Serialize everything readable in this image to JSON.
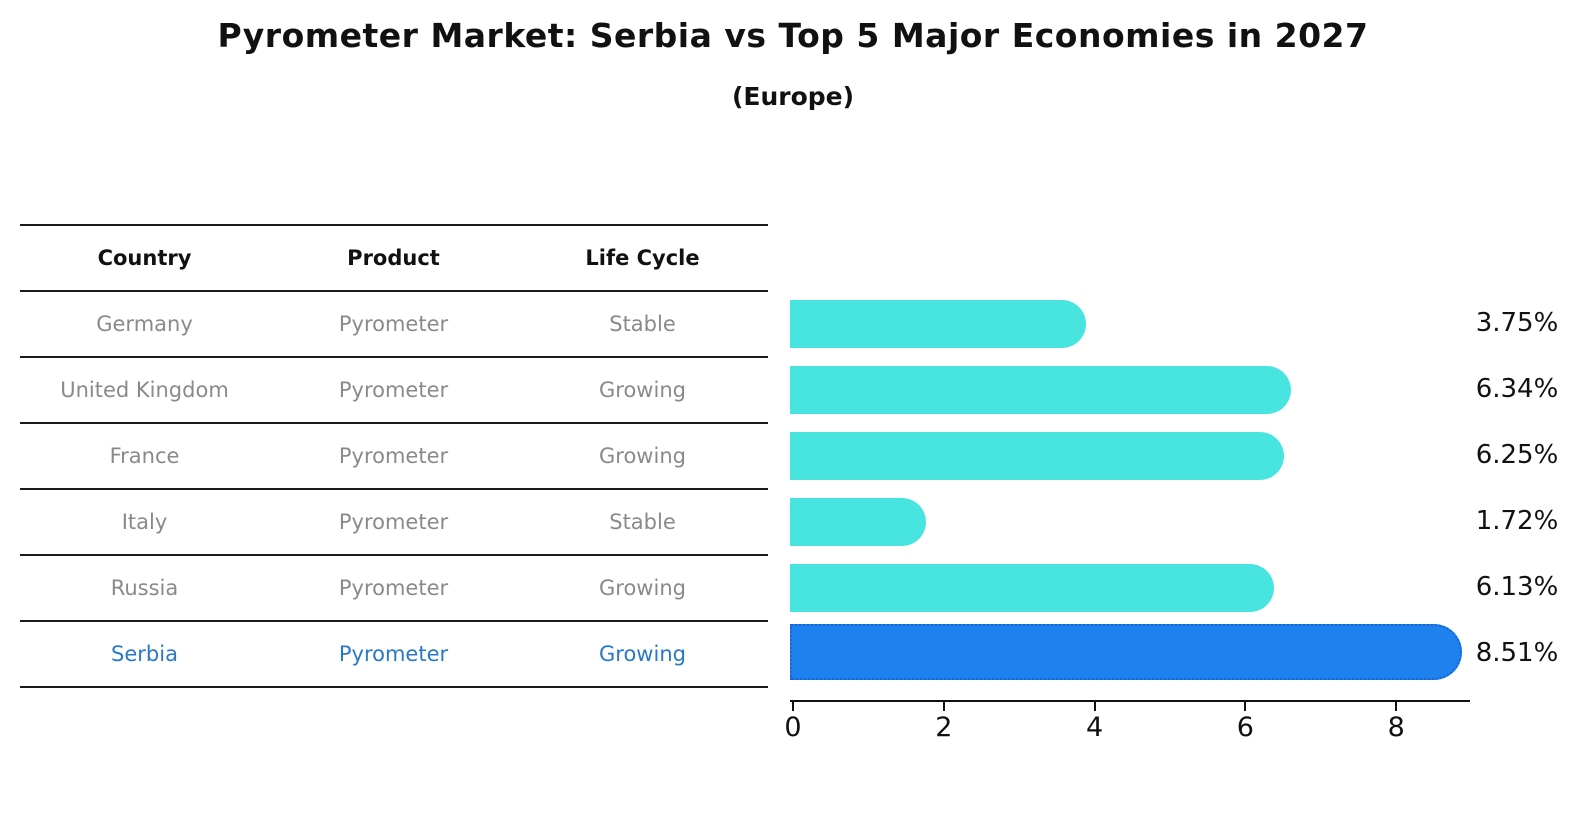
{
  "title": "Pyrometer Market: Serbia vs Top 5 Major Economies in 2027",
  "subtitle": "(Europe)",
  "table": {
    "columns": [
      "Country",
      "Product",
      "Life Cycle"
    ]
  },
  "chart_data": {
    "type": "bar",
    "orientation": "horizontal",
    "title": "Pyrometer Market: Serbia vs Top 5 Major Economies in 2027",
    "subtitle": "(Europe)",
    "xlim": [
      0,
      9
    ],
    "x_ticks": [
      0,
      2,
      4,
      6,
      8
    ],
    "grid": false,
    "legend": "none",
    "value_unit": "%",
    "rows": [
      {
        "country": "Germany",
        "product": "Pyrometer",
        "life_cycle": "Stable",
        "value": 3.75,
        "value_label": "3.75%",
        "highlight": false
      },
      {
        "country": "United Kingdom",
        "product": "Pyrometer",
        "life_cycle": "Growing",
        "value": 6.34,
        "value_label": "6.34%",
        "highlight": false
      },
      {
        "country": "France",
        "product": "Pyrometer",
        "life_cycle": "Growing",
        "value": 6.25,
        "value_label": "6.25%",
        "highlight": false
      },
      {
        "country": "Italy",
        "product": "Pyrometer",
        "life_cycle": "Stable",
        "value": 1.72,
        "value_label": "1.72%",
        "highlight": false
      },
      {
        "country": "Russia",
        "product": "Pyrometer",
        "life_cycle": "Growing",
        "value": 6.13,
        "value_label": "6.13%",
        "highlight": false
      },
      {
        "country": "Serbia",
        "product": "Pyrometer",
        "life_cycle": "Growing",
        "value": 8.51,
        "value_label": "8.51%",
        "highlight": true
      }
    ],
    "colors": {
      "bar": "#48e5e0",
      "highlight_bar": "#1d81ee",
      "highlight_border": "#1a62d6",
      "row_text": "#8a8a8a",
      "highlight_text": "#2979c9",
      "header_text": "#111111",
      "axis": "#111111"
    }
  }
}
